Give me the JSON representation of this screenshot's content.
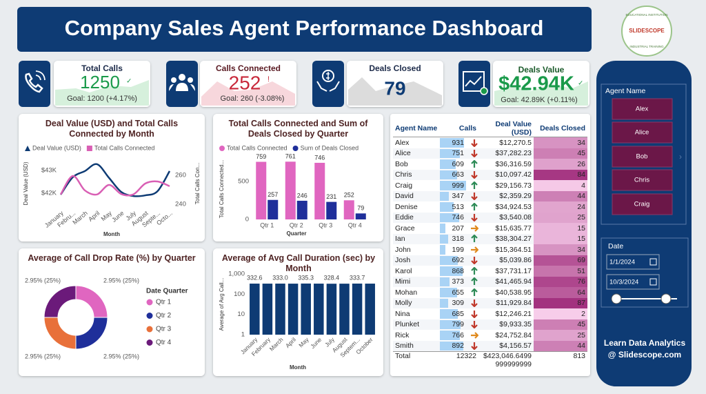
{
  "header": {
    "title": "Company Sales Agent Performance Dashboard",
    "logo": {
      "top": "EDUCATIONAL INSTITUTION",
      "brand": "SLIDESCOPE",
      "bottom": "INDUSTRIAL TRAINING"
    }
  },
  "kpis": [
    {
      "title": "Total Calls",
      "value": 1250,
      "status": "✓",
      "goal": "Goal: 1200 (+4.17%)",
      "color": "#1a9a4a"
    },
    {
      "title": "Calls Connected",
      "value": 252,
      "status": "!",
      "goal": "Goal: 260 (-3.08%)",
      "color": "#c8283a"
    },
    {
      "title": "Deals Closed",
      "value": 79,
      "color": "#0e3b74"
    },
    {
      "title": "Deals Value",
      "value": "$42.94K",
      "status": "✓",
      "goal": "Goal: 42.89K (+0.11%)",
      "color": "#1a9a4a"
    }
  ],
  "slicer": {
    "agent_title": "Agent Name",
    "agents": [
      "Alex",
      "Alice",
      "Bob",
      "Chris",
      "Craig"
    ],
    "date_title": "Date",
    "date_from": "1/1/2024",
    "date_to": "10/3/2024",
    "footer": [
      "Learn Data Analytics",
      "@ Slidescope.com"
    ]
  },
  "table": {
    "columns": [
      "Agent Name",
      "Calls",
      "Deal Value (USD)",
      "Deals Closed"
    ],
    "rows": [
      [
        "Alex",
        931,
        "$12,270.5",
        34
      ],
      [
        "Alice",
        751,
        "$37,282.23",
        45
      ],
      [
        "Bob",
        609,
        "$36,316.59",
        26
      ],
      [
        "Chris",
        663,
        "$10,097.42",
        84
      ],
      [
        "Craig",
        999,
        "$29,156.73",
        4
      ],
      [
        "David",
        347,
        "$2,359.29",
        44
      ],
      [
        "Denise",
        513,
        "$34,924.53",
        24
      ],
      [
        "Eddie",
        746,
        "$3,540.08",
        25
      ],
      [
        "Grace",
        207,
        "$15,635.77",
        15
      ],
      [
        "Ian",
        318,
        "$38,304.27",
        15
      ],
      [
        "John",
        199,
        "$15,364.51",
        34
      ],
      [
        "Josh",
        692,
        "$5,039.86",
        69
      ],
      [
        "Karol",
        868,
        "$37,731.17",
        51
      ],
      [
        "Mimi",
        373,
        "$41,465.94",
        76
      ],
      [
        "Mohan",
        655,
        "$40,538.95",
        64
      ],
      [
        "Molly",
        309,
        "$11,929.84",
        87
      ],
      [
        "Nina",
        685,
        "$12,246.21",
        2
      ],
      [
        "Plunket",
        799,
        "$9,933.35",
        45
      ],
      [
        "Rick",
        766,
        "$24,752.84",
        25
      ],
      [
        "Smith",
        892,
        "$4,156.57",
        44
      ]
    ],
    "trends": [
      "down",
      "down",
      "up",
      "down",
      "up",
      "down",
      "up",
      "down",
      "right",
      "up",
      "right",
      "down",
      "up",
      "up",
      "up",
      "down",
      "down",
      "down",
      "right",
      "down"
    ],
    "total": [
      "Total",
      12322,
      "$423,046.6499999999999",
      813
    ]
  },
  "chart_data": [
    {
      "type": "line",
      "title": "Deal Value (USD) and Total Calls Connected by Month",
      "categories": [
        "January",
        "Febru...",
        "March",
        "April",
        "May",
        "June",
        "July",
        "August",
        "Septe...",
        "Octo..."
      ],
      "series": [
        {
          "name": "Deal Value (USD)",
          "color": "#0e3b74",
          "values": [
            41940,
            42700,
            42970,
            43270,
            42670,
            42060,
            41880,
            41910,
            42090,
            42970
          ]
        },
        {
          "name": "Total Calls Connected",
          "color": "#d95fb4",
          "axis": "y2",
          "values": [
            246.7,
            259.5,
            249.5,
            246.7,
            253.3,
            247,
            246.7,
            254.3,
            255.7,
            252.4
          ]
        }
      ],
      "ylim": [
        41400,
        43450
      ],
      "yticks": [
        {
          "value": 42000,
          "label": "$42K"
        },
        {
          "value": 43000,
          "label": "$43K"
        }
      ],
      "y2lim": [
        238,
        270.5
      ],
      "y2ticks": [
        240,
        260
      ],
      "ylabel": "Deal Value (USD)",
      "y2label": "Total Calls Con...",
      "xlabel": "Month",
      "grid": false
    },
    {
      "type": "bar",
      "title": "Total Calls Connected and Sum of Deals Closed by Quarter",
      "categories": [
        "Qtr 1",
        "Qtr 2",
        "Qtr 3",
        "Qtr 4"
      ],
      "series": [
        {
          "name": "Total Calls Connected",
          "color": "#e066c0",
          "values": [
            759,
            761,
            746,
            252
          ]
        },
        {
          "name": "Sum of Deals Closed",
          "color": "#1f2f9a",
          "values": [
            257,
            246,
            231,
            79
          ]
        }
      ],
      "ylim": [
        0,
        800
      ],
      "yticks": [
        0,
        500
      ],
      "ylabel": "Total Calls Connected...",
      "xlabel": "Quarter",
      "data_labels": true,
      "grid": false
    },
    {
      "type": "donut",
      "title": "Average of Call Drop Rate (%) by Quarter",
      "legend_title": "Date Quarter",
      "categories": [
        "Qtr 1",
        "Qtr 2",
        "Qtr 3",
        "Qtr 4"
      ],
      "values": [
        2.95,
        2.95,
        2.95,
        2.95
      ],
      "value_labels": [
        "2.95% (25%)",
        "2.95% (25%)",
        "2.95% (25%)",
        "2.95% (25%)"
      ],
      "colors": [
        "#e066c0",
        "#1f2f9a",
        "#e8703a",
        "#6b1a7a"
      ]
    },
    {
      "type": "bar",
      "title": "Average of Avg Call Duration (sec) by Month",
      "log": true,
      "categories": [
        "January",
        "February",
        "March",
        "April",
        "May",
        "June",
        "July",
        "August",
        "Septem...",
        "October"
      ],
      "values": [
        332.6,
        331.8,
        333.0,
        330.9,
        335.3,
        332.1,
        328.4,
        330.0,
        333.7,
        332.0
      ],
      "value_labels": [
        "332.6",
        null,
        "333.0",
        null,
        "335.3",
        null,
        "328.4",
        null,
        "333.7",
        null
      ],
      "color": "#0e3b74",
      "ylim": [
        1,
        1000
      ],
      "yticks": [
        1,
        10,
        100,
        {
          "value": 1000,
          "label": "1,000"
        }
      ],
      "ylabel": "Average of Avg Call...",
      "xlabel": "Month",
      "grid": false
    }
  ]
}
